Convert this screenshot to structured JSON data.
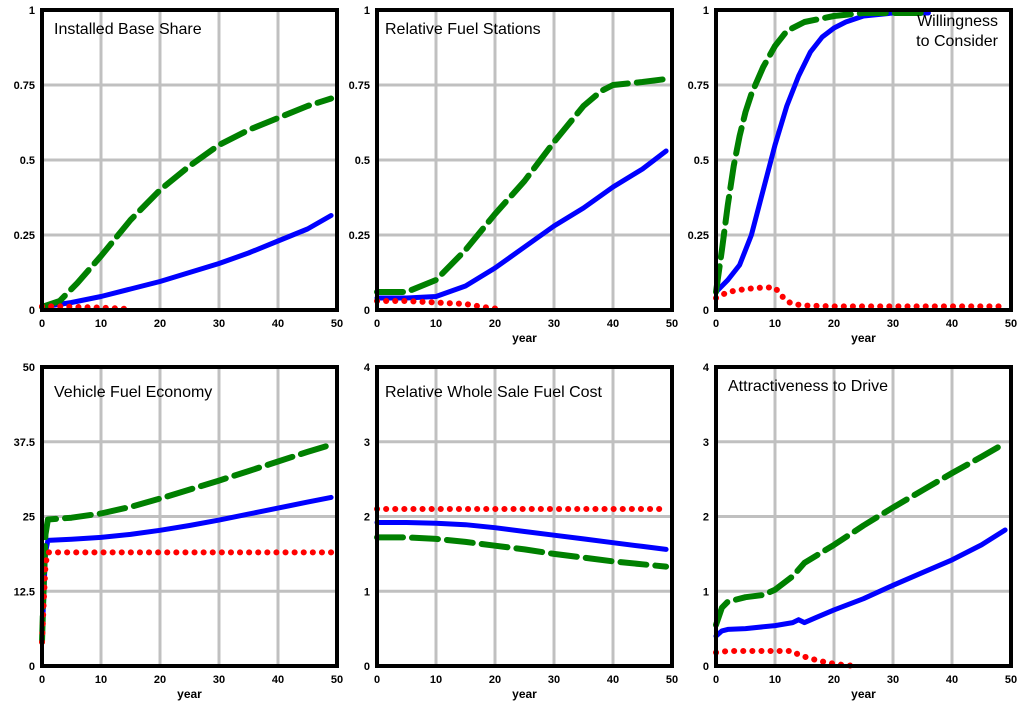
{
  "figure": {
    "colors": {
      "series_solid": "#0000ff",
      "series_dashed": "#008000",
      "series_dotted": "#ff0000",
      "grid": "#c0c0c0",
      "frame": "#000000"
    }
  },
  "chart_data": [
    {
      "type": "line",
      "title": "Installed Base Share",
      "title_lines": [
        "Installed Base Share"
      ],
      "xlabel": "",
      "ylabel": "",
      "xlim": [
        0,
        50
      ],
      "ylim": [
        0,
        1
      ],
      "x_ticks": [
        "0",
        "10",
        "20",
        "30",
        "40",
        "50"
      ],
      "y_ticks": [
        "0",
        "0.25",
        "0.5",
        "0.75",
        "1"
      ],
      "grid": true,
      "series": [
        {
          "style": "solid",
          "color": "#0000ff",
          "x": [
            0,
            5,
            10,
            15,
            20,
            25,
            30,
            35,
            40,
            45,
            49
          ],
          "y": [
            0.01,
            0.025,
            0.045,
            0.07,
            0.095,
            0.125,
            0.155,
            0.19,
            0.23,
            0.27,
            0.315
          ]
        },
        {
          "style": "dashed",
          "color": "#008000",
          "x": [
            0,
            3,
            6,
            10,
            15,
            20,
            25,
            30,
            35,
            40,
            45,
            49
          ],
          "y": [
            0.01,
            0.03,
            0.09,
            0.18,
            0.3,
            0.4,
            0.48,
            0.55,
            0.6,
            0.64,
            0.68,
            0.705
          ]
        },
        {
          "style": "dotted",
          "color": "#ff0000",
          "x": [
            0,
            3,
            6,
            10,
            13,
            15
          ],
          "y": [
            0.012,
            0.012,
            0.01,
            0.008,
            0.005,
            0.003
          ]
        }
      ]
    },
    {
      "type": "line",
      "title": "Relative Fuel Stations",
      "title_lines": [
        "Relative Fuel Stations"
      ],
      "xlabel": "year",
      "ylabel": "",
      "xlim": [
        0,
        50
      ],
      "ylim": [
        0,
        1
      ],
      "x_ticks": [
        "0",
        "10",
        "20",
        "30",
        "40",
        "50"
      ],
      "y_ticks": [
        "0",
        "0.25",
        "0.5",
        "0.75",
        "1"
      ],
      "grid": true,
      "series": [
        {
          "style": "solid",
          "color": "#0000ff",
          "x": [
            0,
            5,
            10,
            15,
            20,
            25,
            30,
            35,
            40,
            45,
            49
          ],
          "y": [
            0.04,
            0.04,
            0.045,
            0.08,
            0.14,
            0.21,
            0.28,
            0.34,
            0.41,
            0.47,
            0.53
          ]
        },
        {
          "style": "dashed",
          "color": "#008000",
          "x": [
            0,
            5,
            10,
            15,
            20,
            25,
            30,
            35,
            38,
            40,
            45,
            49
          ],
          "y": [
            0.06,
            0.06,
            0.1,
            0.2,
            0.32,
            0.43,
            0.56,
            0.68,
            0.73,
            0.75,
            0.76,
            0.77
          ]
        },
        {
          "style": "dotted",
          "color": "#ff0000",
          "x": [
            0,
            5,
            10,
            15,
            18,
            20
          ],
          "y": [
            0.03,
            0.03,
            0.025,
            0.02,
            0.01,
            0.005
          ]
        }
      ]
    },
    {
      "type": "line",
      "title": "Willingness to Consider",
      "title_lines": [
        "Willingness",
        "to Consider"
      ],
      "xlabel": "year",
      "ylabel": "",
      "xlim": [
        0,
        50
      ],
      "ylim": [
        0,
        1
      ],
      "x_ticks": [
        "0",
        "10",
        "20",
        "30",
        "40",
        "50"
      ],
      "y_ticks": [
        "0",
        "0.25",
        "0.5",
        "0.75",
        "1"
      ],
      "grid": true,
      "series": [
        {
          "style": "solid",
          "color": "#0000ff",
          "x": [
            0,
            2,
            4,
            6,
            8,
            10,
            12,
            14,
            16,
            18,
            20,
            22,
            25,
            30,
            36
          ],
          "y": [
            0.06,
            0.1,
            0.15,
            0.25,
            0.4,
            0.55,
            0.68,
            0.78,
            0.86,
            0.91,
            0.94,
            0.96,
            0.98,
            0.99,
            0.99
          ]
        },
        {
          "style": "dashed",
          "color": "#008000",
          "x": [
            0,
            1,
            2,
            3,
            4,
            5,
            6,
            8,
            10,
            12,
            15,
            20,
            25,
            30,
            35
          ],
          "y": [
            0.06,
            0.2,
            0.35,
            0.48,
            0.58,
            0.66,
            0.72,
            0.81,
            0.88,
            0.93,
            0.96,
            0.98,
            0.99,
            0.99,
            0.99
          ]
        },
        {
          "style": "dotted",
          "color": "#ff0000",
          "x": [
            0,
            2,
            5,
            8,
            10,
            11,
            12,
            13,
            15,
            20,
            30,
            40,
            49
          ],
          "y": [
            0.04,
            0.06,
            0.07,
            0.075,
            0.075,
            0.05,
            0.03,
            0.02,
            0.015,
            0.012,
            0.012,
            0.012,
            0.012
          ]
        }
      ]
    },
    {
      "type": "line",
      "title": "Vehicle Fuel Economy",
      "title_lines": [
        "Vehicle Fuel Economy"
      ],
      "xlabel": "year",
      "ylabel": "",
      "xlim": [
        0,
        50
      ],
      "ylim": [
        0,
        50
      ],
      "x_ticks": [
        "0",
        "10",
        "20",
        "30",
        "40",
        "50"
      ],
      "y_ticks": [
        "0",
        "12.5",
        "25",
        "37.5",
        "50"
      ],
      "grid": true,
      "series": [
        {
          "style": "solid",
          "color": "#0000ff",
          "x": [
            0,
            0.3,
            0.6,
            1,
            5,
            10,
            15,
            20,
            25,
            30,
            35,
            40,
            45,
            49
          ],
          "y": [
            4,
            12,
            19,
            21,
            21.2,
            21.5,
            22,
            22.7,
            23.5,
            24.4,
            25.4,
            26.4,
            27.4,
            28.2
          ]
        },
        {
          "style": "dashed",
          "color": "#008000",
          "x": [
            0,
            0.3,
            0.6,
            1,
            5,
            10,
            15,
            20,
            25,
            30,
            35,
            40,
            45,
            49
          ],
          "y": [
            4,
            14,
            22,
            24.5,
            24.8,
            25.5,
            26.6,
            28,
            29.5,
            31,
            32.6,
            34.2,
            35.8,
            37
          ]
        },
        {
          "style": "dotted",
          "color": "#ff0000",
          "x": [
            0,
            0.3,
            0.6,
            1,
            5,
            10,
            20,
            30,
            40,
            49
          ],
          "y": [
            4,
            11,
            17,
            19,
            19,
            19,
            19,
            19,
            19,
            19
          ]
        }
      ]
    },
    {
      "type": "line",
      "title": "Relative Whole Sale Fuel Cost",
      "title_lines": [
        "Relative Whole Sale Fuel Cost"
      ],
      "xlabel": "year",
      "ylabel": "",
      "xlim": [
        0,
        50
      ],
      "ylim": [
        0,
        4
      ],
      "x_ticks": [
        "0",
        "10",
        "20",
        "30",
        "40",
        "50"
      ],
      "y_ticks": [
        "0",
        "1",
        "2",
        "3",
        "4"
      ],
      "grid": true,
      "series": [
        {
          "style": "solid",
          "color": "#0000ff",
          "x": [
            0,
            5,
            10,
            15,
            20,
            25,
            30,
            35,
            40,
            45,
            49
          ],
          "y": [
            1.92,
            1.92,
            1.91,
            1.89,
            1.85,
            1.8,
            1.75,
            1.7,
            1.65,
            1.6,
            1.56
          ]
        },
        {
          "style": "dashed",
          "color": "#008000",
          "x": [
            0,
            5,
            10,
            15,
            20,
            25,
            30,
            35,
            40,
            45,
            49
          ],
          "y": [
            1.72,
            1.72,
            1.7,
            1.66,
            1.61,
            1.56,
            1.5,
            1.45,
            1.4,
            1.36,
            1.33
          ]
        },
        {
          "style": "dotted",
          "color": "#ff0000",
          "x": [
            0,
            10,
            20,
            30,
            40,
            49
          ],
          "y": [
            2.1,
            2.1,
            2.1,
            2.1,
            2.1,
            2.1
          ]
        }
      ]
    },
    {
      "type": "line",
      "title": "Attractiveness to Drive",
      "title_lines": [
        "Attractiveness to Drive"
      ],
      "xlabel": "year",
      "ylabel": "",
      "xlim": [
        0,
        50
      ],
      "ylim": [
        0,
        4
      ],
      "x_ticks": [
        "0",
        "10",
        "20",
        "30",
        "40",
        "50"
      ],
      "y_ticks": [
        "0",
        "1",
        "2",
        "3",
        "4"
      ],
      "grid": true,
      "series": [
        {
          "style": "solid",
          "color": "#0000ff",
          "x": [
            0,
            1,
            2,
            5,
            10,
            13,
            14,
            15,
            17,
            20,
            25,
            30,
            35,
            40,
            45,
            49
          ],
          "y": [
            0.4,
            0.47,
            0.49,
            0.5,
            0.54,
            0.58,
            0.62,
            0.58,
            0.65,
            0.75,
            0.9,
            1.08,
            1.25,
            1.42,
            1.62,
            1.82
          ]
        },
        {
          "style": "dashed",
          "color": "#008000",
          "x": [
            0,
            1,
            2,
            5,
            8,
            10,
            13,
            15,
            20,
            25,
            30,
            35,
            40,
            45,
            49
          ],
          "y": [
            0.55,
            0.78,
            0.86,
            0.92,
            0.95,
            1.02,
            1.2,
            1.38,
            1.62,
            1.88,
            2.12,
            2.35,
            2.58,
            2.8,
            2.98
          ]
        },
        {
          "style": "dotted",
          "color": "#ff0000",
          "x": [
            0,
            2,
            5,
            10,
            13,
            14,
            16,
            18,
            20,
            22,
            24
          ],
          "y": [
            0.18,
            0.2,
            0.2,
            0.2,
            0.2,
            0.15,
            0.1,
            0.06,
            0.03,
            0.01,
            0.0
          ]
        }
      ]
    }
  ]
}
